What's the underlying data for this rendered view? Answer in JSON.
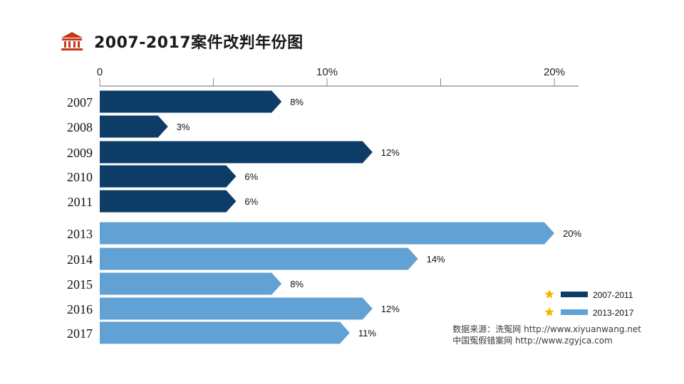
{
  "title": "2007-2017案件改判年份图",
  "icon": "courthouse-icon",
  "colors": {
    "group1": "#0d3d66",
    "group2": "#62a1d4",
    "star": "#f5b800",
    "axis": "#888888"
  },
  "legend": [
    {
      "label": "2007-2011",
      "color": "#0d3d66"
    },
    {
      "label": "2013-2017",
      "color": "#62a1d4"
    }
  ],
  "source": {
    "line1": "数据来源：洗冤网 http://www.xiyuanwang.net",
    "line2": "中国冤假错案网  http://www.zgyjca.com"
  },
  "chart_data": {
    "type": "bar",
    "orientation": "horizontal",
    "xlim": [
      0,
      20
    ],
    "ticks": [
      {
        "value": 0,
        "label": "0"
      },
      {
        "value": 10,
        "label": "10%"
      },
      {
        "value": 20,
        "label": "20%"
      }
    ],
    "categories": [
      "2007",
      "2008",
      "2009",
      "2010",
      "2011",
      "2013",
      "2014",
      "2015",
      "2016",
      "2017"
    ],
    "values": [
      8,
      3,
      12,
      6,
      6,
      20,
      14,
      8,
      12,
      11
    ],
    "value_labels": [
      "8%",
      "3%",
      "12%",
      "6%",
      "6%",
      "20%",
      "14%",
      "8%",
      "12%",
      "11%"
    ],
    "groups": [
      "2007-2011",
      "2007-2011",
      "2007-2011",
      "2007-2011",
      "2007-2011",
      "2013-2017",
      "2013-2017",
      "2013-2017",
      "2013-2017",
      "2013-2017"
    ],
    "legend_position": "bottom-right"
  }
}
